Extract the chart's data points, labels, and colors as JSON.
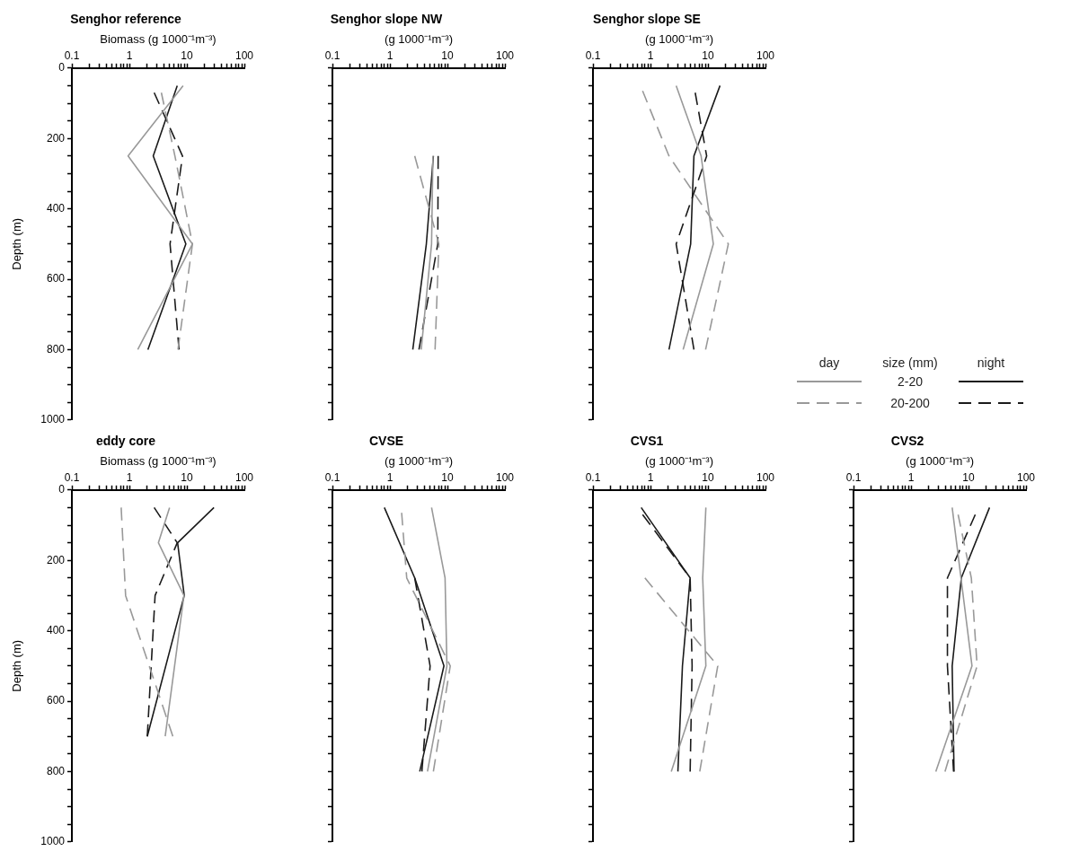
{
  "chart_data": [
    {
      "type": "line",
      "title": "Senghor reference",
      "xlabel": "Biomass (g 1000⁻¹m⁻³)",
      "ylabel": "Depth (m)",
      "log": "x",
      "xlim": [
        0.1,
        100
      ],
      "ylim": [
        1000,
        0
      ],
      "xticks": [
        0.1,
        {
          "value": 0.2,
          "label": null
        },
        {
          "value": 0.3,
          "label": null
        },
        {
          "value": 0.4,
          "label": null
        },
        {
          "value": 0.5,
          "label": null
        },
        {
          "value": 0.6,
          "label": null
        },
        {
          "value": 0.7,
          "label": null
        },
        {
          "value": 0.8,
          "label": null
        },
        {
          "value": 0.9,
          "label": null
        },
        1,
        {
          "value": 2,
          "label": null
        },
        {
          "value": 3,
          "label": null
        },
        {
          "value": 4,
          "label": null
        },
        {
          "value": 5,
          "label": null
        },
        {
          "value": 6,
          "label": null
        },
        {
          "value": 7,
          "label": null
        },
        {
          "value": 8,
          "label": null
        },
        {
          "value": 9,
          "label": null
        },
        10,
        {
          "value": 20,
          "label": null
        },
        {
          "value": 30,
          "label": null
        },
        {
          "value": 40,
          "label": null
        },
        {
          "value": 50,
          "label": null
        },
        {
          "value": 60,
          "label": null
        },
        {
          "value": 70,
          "label": null
        },
        {
          "value": 80,
          "label": null
        },
        {
          "value": 90,
          "label": null
        },
        100
      ],
      "yticks": [
        0,
        {
          "value": 50,
          "label": null
        },
        {
          "value": 100,
          "label": null
        },
        {
          "value": 150,
          "label": null
        },
        200,
        {
          "value": 250,
          "label": null
        },
        {
          "value": 300,
          "label": null
        },
        {
          "value": 350,
          "label": null
        },
        400,
        {
          "value": 450,
          "label": null
        },
        {
          "value": 500,
          "label": null
        },
        {
          "value": 550,
          "label": null
        },
        600,
        {
          "value": 650,
          "label": null
        },
        {
          "value": 700,
          "label": null
        },
        {
          "value": 750,
          "label": null
        },
        800,
        {
          "value": 850,
          "label": null
        },
        {
          "value": 900,
          "label": null
        },
        {
          "value": 950,
          "label": null
        },
        1000
      ],
      "grid": false,
      "legend": false,
      "marker": "none",
      "series": [
        {
          "color": "#999999",
          "line_style": "solid",
          "x": [
            8.6,
            0.95,
            12.5,
            1.4
          ],
          "values": [
            50,
            250,
            500,
            800
          ]
        },
        {
          "color": "#999999",
          "line_style": "dashed",
          "x": [
            3.6,
            6.2,
            12.5,
            7.0
          ],
          "values": [
            70,
            250,
            500,
            800
          ]
        },
        {
          "color": "#1a1a1a",
          "line_style": "solid",
          "x": [
            6.8,
            2.6,
            9.6,
            2.1
          ],
          "values": [
            50,
            250,
            500,
            800
          ]
        },
        {
          "color": "#1a1a1a",
          "line_style": "dashed",
          "x": [
            2.7,
            8.4,
            5.1,
            7.3
          ],
          "values": [
            70,
            250,
            500,
            800
          ]
        }
      ]
    },
    {
      "type": "line",
      "title": "Senghor slope NW",
      "xlabel": "(g 1000⁻¹m⁻³)",
      "log": "x",
      "xlim": [
        0.1,
        100
      ],
      "ylim": [
        1000,
        0
      ],
      "tick_labels": "x",
      "xticks": [
        0.1,
        {
          "value": 0.2,
          "label": null
        },
        {
          "value": 0.3,
          "label": null
        },
        {
          "value": 0.4,
          "label": null
        },
        {
          "value": 0.5,
          "label": null
        },
        {
          "value": 0.6,
          "label": null
        },
        {
          "value": 0.7,
          "label": null
        },
        {
          "value": 0.8,
          "label": null
        },
        {
          "value": 0.9,
          "label": null
        },
        1,
        {
          "value": 2,
          "label": null
        },
        {
          "value": 3,
          "label": null
        },
        {
          "value": 4,
          "label": null
        },
        {
          "value": 5,
          "label": null
        },
        {
          "value": 6,
          "label": null
        },
        {
          "value": 7,
          "label": null
        },
        {
          "value": 8,
          "label": null
        },
        {
          "value": 9,
          "label": null
        },
        10,
        {
          "value": 20,
          "label": null
        },
        {
          "value": 30,
          "label": null
        },
        {
          "value": 40,
          "label": null
        },
        {
          "value": 50,
          "label": null
        },
        {
          "value": 60,
          "label": null
        },
        {
          "value": 70,
          "label": null
        },
        {
          "value": 80,
          "label": null
        },
        {
          "value": 90,
          "label": null
        },
        100
      ],
      "yticks": [
        0,
        {
          "value": 50,
          "label": null
        },
        {
          "value": 100,
          "label": null
        },
        {
          "value": 150,
          "label": null
        },
        200,
        {
          "value": 250,
          "label": null
        },
        {
          "value": 300,
          "label": null
        },
        {
          "value": 350,
          "label": null
        },
        400,
        {
          "value": 450,
          "label": null
        },
        {
          "value": 500,
          "label": null
        },
        {
          "value": 550,
          "label": null
        },
        600,
        {
          "value": 650,
          "label": null
        },
        {
          "value": 700,
          "label": null
        },
        {
          "value": 750,
          "label": null
        },
        800,
        {
          "value": 850,
          "label": null
        },
        {
          "value": 900,
          "label": null
        },
        {
          "value": 950,
          "label": null
        },
        1000
      ],
      "grid": false,
      "legend": false,
      "marker": "none",
      "series": [
        {
          "color": "#999999",
          "line_style": "solid",
          "x": [
            5.6,
            5.3,
            3.5
          ],
          "values": [
            250,
            500,
            800
          ]
        },
        {
          "color": "#999999",
          "line_style": "dashed",
          "x": [
            2.7,
            7.1,
            6.1
          ],
          "values": [
            250,
            500,
            800
          ]
        },
        {
          "color": "#1a1a1a",
          "line_style": "solid",
          "x": [
            5.7,
            4.3,
            2.5
          ],
          "values": [
            250,
            500,
            800
          ]
        },
        {
          "color": "#1a1a1a",
          "line_style": "dashed",
          "x": [
            6.9,
            6.8,
            3.2
          ],
          "values": [
            250,
            500,
            800
          ]
        }
      ]
    },
    {
      "type": "line",
      "title": "Senghor slope SE",
      "xlabel": "(g 1000⁻¹m⁻³)",
      "legend_title": "size (mm)",
      "annotations": [
        "day",
        "night"
      ],
      "log": "x",
      "xlim": [
        0.1,
        100
      ],
      "ylim": [
        1000,
        0
      ],
      "tick_labels": "x",
      "xticks": [
        0.1,
        {
          "value": 0.2,
          "label": null
        },
        {
          "value": 0.3,
          "label": null
        },
        {
          "value": 0.4,
          "label": null
        },
        {
          "value": 0.5,
          "label": null
        },
        {
          "value": 0.6,
          "label": null
        },
        {
          "value": 0.7,
          "label": null
        },
        {
          "value": 0.8,
          "label": null
        },
        {
          "value": 0.9,
          "label": null
        },
        1,
        {
          "value": 2,
          "label": null
        },
        {
          "value": 3,
          "label": null
        },
        {
          "value": 4,
          "label": null
        },
        {
          "value": 5,
          "label": null
        },
        {
          "value": 6,
          "label": null
        },
        {
          "value": 7,
          "label": null
        },
        {
          "value": 8,
          "label": null
        },
        {
          "value": 9,
          "label": null
        },
        10,
        {
          "value": 20,
          "label": null
        },
        {
          "value": 30,
          "label": null
        },
        {
          "value": 40,
          "label": null
        },
        {
          "value": 50,
          "label": null
        },
        {
          "value": 60,
          "label": null
        },
        {
          "value": 70,
          "label": null
        },
        {
          "value": 80,
          "label": null
        },
        {
          "value": 90,
          "label": null
        },
        100
      ],
      "yticks": [
        0,
        {
          "value": 50,
          "label": null
        },
        {
          "value": 100,
          "label": null
        },
        {
          "value": 150,
          "label": null
        },
        200,
        {
          "value": 250,
          "label": null
        },
        {
          "value": 300,
          "label": null
        },
        {
          "value": 350,
          "label": null
        },
        400,
        {
          "value": 450,
          "label": null
        },
        {
          "value": 500,
          "label": null
        },
        {
          "value": 550,
          "label": null
        },
        600,
        {
          "value": 650,
          "label": null
        },
        {
          "value": 700,
          "label": null
        },
        {
          "value": 750,
          "label": null
        },
        800,
        {
          "value": 850,
          "label": null
        },
        {
          "value": 900,
          "label": null
        },
        {
          "value": 950,
          "label": null
        },
        1000
      ],
      "grid": false,
      "legend": "right",
      "marker": "none",
      "series": [
        {
          "name": "2-20",
          "color": "#999999",
          "line_style": "solid",
          "x": [
            2.8,
            7.6,
            12.4,
            3.7
          ],
          "values": [
            50,
            250,
            500,
            800
          ]
        },
        {
          "name": "20-200",
          "color": "#999999",
          "line_style": "dashed",
          "x": [
            0.73,
            2.1,
            22.6,
            9.1
          ],
          "values": [
            65,
            250,
            500,
            800
          ]
        },
        {
          "color": "#1a1a1a",
          "line_style": "solid",
          "x": [
            16.2,
            5.7,
            5.0,
            2.1
          ],
          "values": [
            50,
            250,
            500,
            800
          ]
        },
        {
          "color": "#1a1a1a",
          "line_style": "dashed",
          "x": [
            6.0,
            9.5,
            2.8,
            5.7
          ],
          "values": [
            70,
            250,
            500,
            800
          ]
        }
      ]
    },
    {
      "type": "line",
      "title": "eddy core",
      "xlabel": "Biomass (g 1000⁻¹m⁻³)",
      "ylabel": "Depth (m)",
      "log": "x",
      "xlim": [
        0.1,
        100
      ],
      "ylim": [
        1000,
        0
      ],
      "xticks": [
        0.1,
        {
          "value": 0.2,
          "label": null
        },
        {
          "value": 0.3,
          "label": null
        },
        {
          "value": 0.4,
          "label": null
        },
        {
          "value": 0.5,
          "label": null
        },
        {
          "value": 0.6,
          "label": null
        },
        {
          "value": 0.7,
          "label": null
        },
        {
          "value": 0.8,
          "label": null
        },
        {
          "value": 0.9,
          "label": null
        },
        1,
        {
          "value": 2,
          "label": null
        },
        {
          "value": 3,
          "label": null
        },
        {
          "value": 4,
          "label": null
        },
        {
          "value": 5,
          "label": null
        },
        {
          "value": 6,
          "label": null
        },
        {
          "value": 7,
          "label": null
        },
        {
          "value": 8,
          "label": null
        },
        {
          "value": 9,
          "label": null
        },
        10,
        {
          "value": 20,
          "label": null
        },
        {
          "value": 30,
          "label": null
        },
        {
          "value": 40,
          "label": null
        },
        {
          "value": 50,
          "label": null
        },
        {
          "value": 60,
          "label": null
        },
        {
          "value": 70,
          "label": null
        },
        {
          "value": 80,
          "label": null
        },
        {
          "value": 90,
          "label": null
        },
        100
      ],
      "yticks": [
        0,
        {
          "value": 50,
          "label": null
        },
        {
          "value": 100,
          "label": null
        },
        {
          "value": 150,
          "label": null
        },
        200,
        {
          "value": 250,
          "label": null
        },
        {
          "value": 300,
          "label": null
        },
        {
          "value": 350,
          "label": null
        },
        400,
        {
          "value": 450,
          "label": null
        },
        {
          "value": 500,
          "label": null
        },
        {
          "value": 550,
          "label": null
        },
        600,
        {
          "value": 650,
          "label": null
        },
        {
          "value": 700,
          "label": null
        },
        {
          "value": 750,
          "label": null
        },
        800,
        {
          "value": 850,
          "label": null
        },
        {
          "value": 900,
          "label": null
        },
        {
          "value": 950,
          "label": null
        },
        1000
      ],
      "grid": false,
      "legend": false,
      "marker": "none",
      "series": [
        {
          "color": "#999999",
          "line_style": "solid",
          "x": [
            5.0,
            3.2,
            8.9,
            4.2
          ],
          "values": [
            50,
            150,
            300,
            700
          ]
        },
        {
          "color": "#999999",
          "line_style": "dashed",
          "x": [
            0.72,
            0.86,
            5.7
          ],
          "values": [
            50,
            300,
            700
          ]
        },
        {
          "color": "#1a1a1a",
          "line_style": "solid",
          "x": [
            29.6,
            6.9,
            9.0,
            2.05
          ],
          "values": [
            50,
            150,
            300,
            700
          ]
        },
        {
          "color": "#1a1a1a",
          "line_style": "dashed",
          "x": [
            2.7,
            6.8,
            2.8,
            2.05
          ],
          "values": [
            50,
            150,
            300,
            700
          ]
        }
      ]
    },
    {
      "type": "line",
      "title": "CVSE",
      "xlabel": "(g 1000⁻¹m⁻³)",
      "log": "x",
      "xlim": [
        0.1,
        100
      ],
      "ylim": [
        1000,
        0
      ],
      "tick_labels": "x",
      "xticks": [
        0.1,
        {
          "value": 0.2,
          "label": null
        },
        {
          "value": 0.3,
          "label": null
        },
        {
          "value": 0.4,
          "label": null
        },
        {
          "value": 0.5,
          "label": null
        },
        {
          "value": 0.6,
          "label": null
        },
        {
          "value": 0.7,
          "label": null
        },
        {
          "value": 0.8,
          "label": null
        },
        {
          "value": 0.9,
          "label": null
        },
        1,
        {
          "value": 2,
          "label": null
        },
        {
          "value": 3,
          "label": null
        },
        {
          "value": 4,
          "label": null
        },
        {
          "value": 5,
          "label": null
        },
        {
          "value": 6,
          "label": null
        },
        {
          "value": 7,
          "label": null
        },
        {
          "value": 8,
          "label": null
        },
        {
          "value": 9,
          "label": null
        },
        10,
        {
          "value": 20,
          "label": null
        },
        {
          "value": 30,
          "label": null
        },
        {
          "value": 40,
          "label": null
        },
        {
          "value": 50,
          "label": null
        },
        {
          "value": 60,
          "label": null
        },
        {
          "value": 70,
          "label": null
        },
        {
          "value": 80,
          "label": null
        },
        {
          "value": 90,
          "label": null
        },
        100
      ],
      "yticks": [
        0,
        {
          "value": 50,
          "label": null
        },
        {
          "value": 100,
          "label": null
        },
        {
          "value": 150,
          "label": null
        },
        200,
        {
          "value": 250,
          "label": null
        },
        {
          "value": 300,
          "label": null
        },
        {
          "value": 350,
          "label": null
        },
        400,
        {
          "value": 450,
          "label": null
        },
        {
          "value": 500,
          "label": null
        },
        {
          "value": 550,
          "label": null
        },
        600,
        {
          "value": 650,
          "label": null
        },
        {
          "value": 700,
          "label": null
        },
        {
          "value": 750,
          "label": null
        },
        800,
        {
          "value": 850,
          "label": null
        },
        {
          "value": 900,
          "label": null
        },
        {
          "value": 950,
          "label": null
        },
        1000
      ],
      "grid": false,
      "legend": false,
      "marker": "none",
      "series": [
        {
          "color": "#999999",
          "line_style": "solid",
          "x": [
            5.3,
            9.1,
            9.8,
            4.5
          ],
          "values": [
            50,
            250,
            500,
            800
          ]
        },
        {
          "color": "#999999",
          "line_style": "dashed",
          "x": [
            1.6,
            1.96,
            11.2,
            5.7
          ],
          "values": [
            65,
            250,
            500,
            800
          ]
        },
        {
          "color": "#1a1a1a",
          "line_style": "solid",
          "x": [
            0.8,
            2.7,
            8.7,
            3.3
          ],
          "values": [
            50,
            250,
            500,
            800
          ]
        },
        {
          "color": "#1a1a1a",
          "line_style": "dashed",
          "x": [
            2.7,
            5.0,
            3.6
          ],
          "values": [
            250,
            500,
            800
          ]
        }
      ]
    },
    {
      "type": "line",
      "title": "CVS1",
      "xlabel": "(g 1000⁻¹m⁻³)",
      "log": "x",
      "xlim": [
        0.1,
        100
      ],
      "ylim": [
        1000,
        0
      ],
      "tick_labels": "x",
      "xticks": [
        0.1,
        {
          "value": 0.2,
          "label": null
        },
        {
          "value": 0.3,
          "label": null
        },
        {
          "value": 0.4,
          "label": null
        },
        {
          "value": 0.5,
          "label": null
        },
        {
          "value": 0.6,
          "label": null
        },
        {
          "value": 0.7,
          "label": null
        },
        {
          "value": 0.8,
          "label": null
        },
        {
          "value": 0.9,
          "label": null
        },
        1,
        {
          "value": 2,
          "label": null
        },
        {
          "value": 3,
          "label": null
        },
        {
          "value": 4,
          "label": null
        },
        {
          "value": 5,
          "label": null
        },
        {
          "value": 6,
          "label": null
        },
        {
          "value": 7,
          "label": null
        },
        {
          "value": 8,
          "label": null
        },
        {
          "value": 9,
          "label": null
        },
        10,
        {
          "value": 20,
          "label": null
        },
        {
          "value": 30,
          "label": null
        },
        {
          "value": 40,
          "label": null
        },
        {
          "value": 50,
          "label": null
        },
        {
          "value": 60,
          "label": null
        },
        {
          "value": 70,
          "label": null
        },
        {
          "value": 80,
          "label": null
        },
        {
          "value": 90,
          "label": null
        },
        100
      ],
      "yticks": [
        0,
        {
          "value": 50,
          "label": null
        },
        {
          "value": 100,
          "label": null
        },
        {
          "value": 150,
          "label": null
        },
        200,
        {
          "value": 250,
          "label": null
        },
        {
          "value": 300,
          "label": null
        },
        {
          "value": 350,
          "label": null
        },
        400,
        {
          "value": 450,
          "label": null
        },
        {
          "value": 500,
          "label": null
        },
        {
          "value": 550,
          "label": null
        },
        600,
        {
          "value": 650,
          "label": null
        },
        {
          "value": 700,
          "label": null
        },
        {
          "value": 750,
          "label": null
        },
        800,
        {
          "value": 850,
          "label": null
        },
        {
          "value": 900,
          "label": null
        },
        {
          "value": 950,
          "label": null
        },
        1000
      ],
      "grid": false,
      "legend": false,
      "marker": "none",
      "series": [
        {
          "color": "#999999",
          "line_style": "solid",
          "x": [
            9.2,
            8.1,
            9.2,
            2.3
          ],
          "values": [
            50,
            250,
            500,
            800
          ]
        },
        {
          "color": "#999999",
          "line_style": "dashed",
          "x": [
            0.8,
            14.8,
            7.2
          ],
          "values": [
            250,
            500,
            800
          ]
        },
        {
          "color": "#1a1a1a",
          "line_style": "solid",
          "x": [
            0.69,
            4.9,
            3.6,
            3.0
          ],
          "values": [
            50,
            250,
            500,
            800
          ]
        },
        {
          "color": "#1a1a1a",
          "line_style": "dashed",
          "x": [
            0.73,
            4.9,
            5.3,
            4.9
          ],
          "values": [
            70,
            250,
            500,
            800
          ]
        }
      ]
    },
    {
      "type": "line",
      "title": "CVS2",
      "xlabel": "(g 1000⁻¹m⁻³)",
      "log": "x",
      "xlim": [
        0.1,
        100
      ],
      "ylim": [
        1000,
        0
      ],
      "tick_labels": "x",
      "xticks": [
        0.1,
        {
          "value": 0.2,
          "label": null
        },
        {
          "value": 0.3,
          "label": null
        },
        {
          "value": 0.4,
          "label": null
        },
        {
          "value": 0.5,
          "label": null
        },
        {
          "value": 0.6,
          "label": null
        },
        {
          "value": 0.7,
          "label": null
        },
        {
          "value": 0.8,
          "label": null
        },
        {
          "value": 0.9,
          "label": null
        },
        1,
        {
          "value": 2,
          "label": null
        },
        {
          "value": 3,
          "label": null
        },
        {
          "value": 4,
          "label": null
        },
        {
          "value": 5,
          "label": null
        },
        {
          "value": 6,
          "label": null
        },
        {
          "value": 7,
          "label": null
        },
        {
          "value": 8,
          "label": null
        },
        {
          "value": 9,
          "label": null
        },
        10,
        {
          "value": 20,
          "label": null
        },
        {
          "value": 30,
          "label": null
        },
        {
          "value": 40,
          "label": null
        },
        {
          "value": 50,
          "label": null
        },
        {
          "value": 60,
          "label": null
        },
        {
          "value": 70,
          "label": null
        },
        {
          "value": 80,
          "label": null
        },
        {
          "value": 90,
          "label": null
        },
        100
      ],
      "yticks": [
        0,
        {
          "value": 50,
          "label": null
        },
        {
          "value": 100,
          "label": null
        },
        {
          "value": 150,
          "label": null
        },
        200,
        {
          "value": 250,
          "label": null
        },
        {
          "value": 300,
          "label": null
        },
        {
          "value": 350,
          "label": null
        },
        400,
        {
          "value": 450,
          "label": null
        },
        {
          "value": 500,
          "label": null
        },
        {
          "value": 550,
          "label": null
        },
        600,
        {
          "value": 650,
          "label": null
        },
        {
          "value": 700,
          "label": null
        },
        {
          "value": 750,
          "label": null
        },
        800,
        {
          "value": 850,
          "label": null
        },
        {
          "value": 900,
          "label": null
        },
        {
          "value": 950,
          "label": null
        },
        1000
      ],
      "grid": false,
      "legend": false,
      "marker": "none",
      "series": [
        {
          "color": "#999999",
          "line_style": "solid",
          "x": [
            5.2,
            11.5,
            2.7
          ],
          "values": [
            50,
            500,
            800
          ]
        },
        {
          "color": "#999999",
          "line_style": "dashed",
          "x": [
            6.6,
            11.2,
            14.1,
            3.9
          ],
          "values": [
            70,
            250,
            500,
            800
          ]
        },
        {
          "color": "#1a1a1a",
          "line_style": "solid",
          "x": [
            23.2,
            7.5,
            5.2,
            5.6
          ],
          "values": [
            50,
            250,
            500,
            800
          ]
        },
        {
          "color": "#1a1a1a",
          "line_style": "dashed",
          "x": [
            13.1,
            4.3,
            4.3,
            5.5
          ],
          "values": [
            70,
            250,
            500,
            800
          ]
        }
      ]
    }
  ]
}
